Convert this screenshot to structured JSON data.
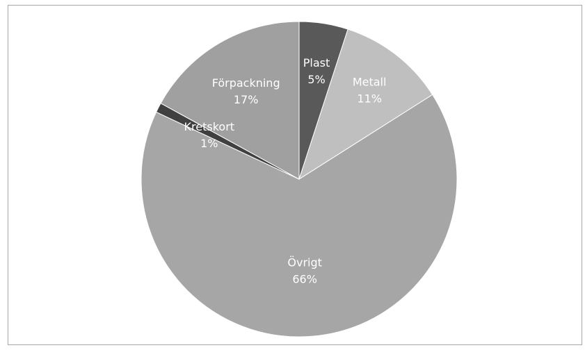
{
  "chart_data": {
    "type": "pie",
    "title": "",
    "categories": [
      "Plast",
      "Metall",
      "Övrigt",
      "Kretskort",
      "Förpackning"
    ],
    "values": [
      5,
      11,
      66,
      1,
      17
    ],
    "labels": [
      "5%",
      "11%",
      "66%",
      "1%",
      "17%"
    ],
    "colors": [
      "#595959",
      "#bfbfbf",
      "#a6a6a6",
      "#404040",
      "#a0a0a0"
    ],
    "legend": "none"
  }
}
